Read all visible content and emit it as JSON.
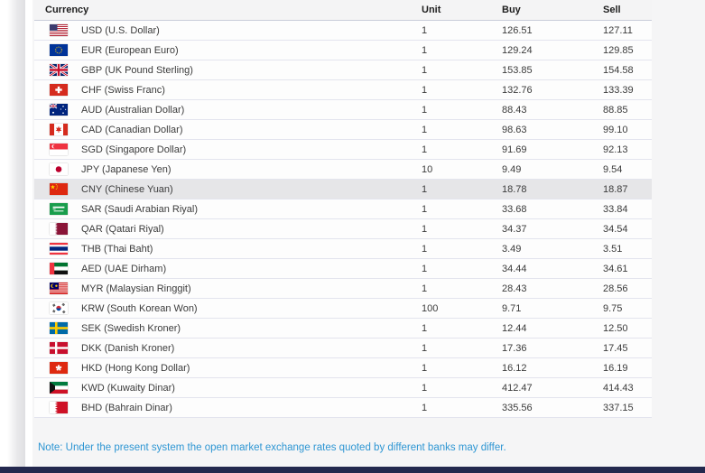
{
  "table": {
    "headers": {
      "currency": "Currency",
      "unit": "Unit",
      "buy": "Buy",
      "sell": "Sell"
    },
    "rows": [
      {
        "code": "USD",
        "name": "USD (U.S. Dollar)",
        "flag": "us",
        "flag_icon": "us-flag-icon",
        "unit": "1",
        "buy": "126.51",
        "sell": "127.11",
        "highlight": false
      },
      {
        "code": "EUR",
        "name": "EUR (European Euro)",
        "flag": "eu",
        "flag_icon": "eu-flag-icon",
        "unit": "1",
        "buy": "129.24",
        "sell": "129.85",
        "highlight": false
      },
      {
        "code": "GBP",
        "name": "GBP (UK Pound Sterling)",
        "flag": "gb",
        "flag_icon": "uk-flag-icon",
        "unit": "1",
        "buy": "153.85",
        "sell": "154.58",
        "highlight": false
      },
      {
        "code": "CHF",
        "name": "CHF (Swiss Franc)",
        "flag": "ch",
        "flag_icon": "switzerland-flag-icon",
        "unit": "1",
        "buy": "132.76",
        "sell": "133.39",
        "highlight": false
      },
      {
        "code": "AUD",
        "name": "AUD (Australian Dollar)",
        "flag": "au",
        "flag_icon": "australia-flag-icon",
        "unit": "1",
        "buy": "88.43",
        "sell": "88.85",
        "highlight": false
      },
      {
        "code": "CAD",
        "name": "CAD (Canadian Dollar)",
        "flag": "ca",
        "flag_icon": "canada-flag-icon",
        "unit": "1",
        "buy": "98.63",
        "sell": "99.10",
        "highlight": false
      },
      {
        "code": "SGD",
        "name": "SGD (Singapore Dollar)",
        "flag": "sg",
        "flag_icon": "singapore-flag-icon",
        "unit": "1",
        "buy": "91.69",
        "sell": "92.13",
        "highlight": false
      },
      {
        "code": "JPY",
        "name": "JPY (Japanese Yen)",
        "flag": "jp",
        "flag_icon": "japan-flag-icon",
        "unit": "10",
        "buy": "9.49",
        "sell": "9.54",
        "highlight": false
      },
      {
        "code": "CNY",
        "name": "CNY (Chinese Yuan)",
        "flag": "cn",
        "flag_icon": "china-flag-icon",
        "unit": "1",
        "buy": "18.78",
        "sell": "18.87",
        "highlight": true
      },
      {
        "code": "SAR",
        "name": "SAR (Saudi Arabian Riyal)",
        "flag": "sa",
        "flag_icon": "saudi-arabia-flag-icon",
        "unit": "1",
        "buy": "33.68",
        "sell": "33.84",
        "highlight": false
      },
      {
        "code": "QAR",
        "name": "QAR (Qatari Riyal)",
        "flag": "qa",
        "flag_icon": "qatar-flag-icon",
        "unit": "1",
        "buy": "34.37",
        "sell": "34.54",
        "highlight": false
      },
      {
        "code": "THB",
        "name": "THB (Thai Baht)",
        "flag": "th",
        "flag_icon": "thailand-flag-icon",
        "unit": "1",
        "buy": "3.49",
        "sell": "3.51",
        "highlight": false
      },
      {
        "code": "AED",
        "name": "AED (UAE Dirham)",
        "flag": "ae",
        "flag_icon": "uae-flag-icon",
        "unit": "1",
        "buy": "34.44",
        "sell": "34.61",
        "highlight": false
      },
      {
        "code": "MYR",
        "name": "MYR (Malaysian Ringgit)",
        "flag": "my",
        "flag_icon": "malaysia-flag-icon",
        "unit": "1",
        "buy": "28.43",
        "sell": "28.56",
        "highlight": false
      },
      {
        "code": "KRW",
        "name": "KRW (South Korean Won)",
        "flag": "kr",
        "flag_icon": "south-korea-flag-icon",
        "unit": "100",
        "buy": "9.71",
        "sell": "9.75",
        "highlight": false
      },
      {
        "code": "SEK",
        "name": "SEK (Swedish Kroner)",
        "flag": "se",
        "flag_icon": "sweden-flag-icon",
        "unit": "1",
        "buy": "12.44",
        "sell": "12.50",
        "highlight": false
      },
      {
        "code": "DKK",
        "name": "DKK (Danish Kroner)",
        "flag": "dk",
        "flag_icon": "denmark-flag-icon",
        "unit": "1",
        "buy": "17.36",
        "sell": "17.45",
        "highlight": false
      },
      {
        "code": "HKD",
        "name": "HKD (Hong Kong Dollar)",
        "flag": "hk",
        "flag_icon": "hong-kong-flag-icon",
        "unit": "1",
        "buy": "16.12",
        "sell": "16.19",
        "highlight": false
      },
      {
        "code": "KWD",
        "name": "KWD (Kuwaity Dinar)",
        "flag": "kw",
        "flag_icon": "kuwait-flag-icon",
        "unit": "1",
        "buy": "412.47",
        "sell": "414.43",
        "highlight": false
      },
      {
        "code": "BHD",
        "name": "BHD (Bahrain Dinar)",
        "flag": "bh",
        "flag_icon": "bahrain-flag-icon",
        "unit": "1",
        "buy": "335.56",
        "sell": "337.15",
        "highlight": false
      }
    ]
  },
  "note": "Note: Under the present system the open market exchange rates quoted by different banks may differ.",
  "colors": {
    "note_text": "#2e96d3",
    "footer_bar": "#23284e",
    "row_highlight": "#e6e6e8",
    "header_divider": "#c9cdda",
    "row_divider": "#e3e4ee",
    "content_bg": "#f5f5f6"
  }
}
